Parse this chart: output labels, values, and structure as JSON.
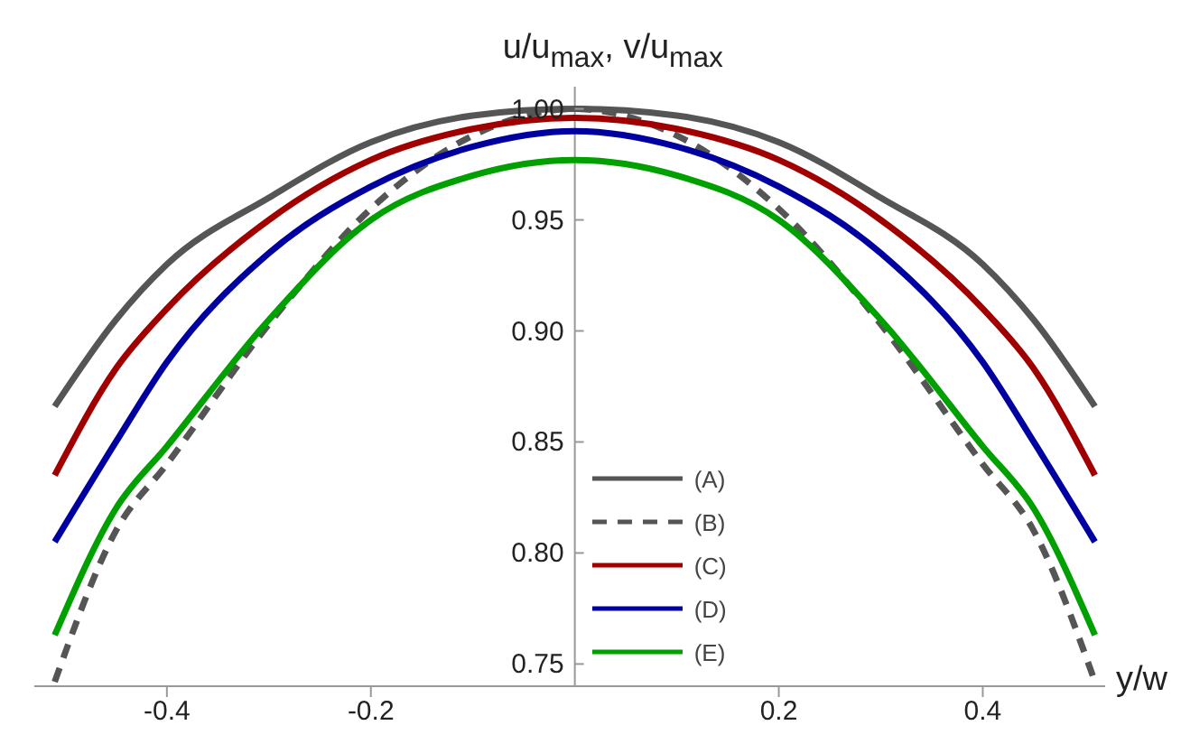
{
  "chart_data": {
    "type": "line",
    "xlabel": "y/w",
    "ylabel": "u/u$_{max}$, v/u$_{max}$",
    "xlim": [
      -0.53,
      0.52
    ],
    "ylim": [
      0.74,
      1.01
    ],
    "xticks": [
      -0.4,
      -0.2,
      0.2,
      0.4
    ],
    "yticks": [
      0.75,
      {
        "value": 0.8,
        "label": "0.80"
      },
      0.85,
      {
        "value": 0.9,
        "label": "0.90"
      },
      0.95,
      {
        "value": 1,
        "label": "1.00"
      }
    ],
    "grid": false,
    "legend": "bottom",
    "marker": "none",
    "x": [
      -0.51,
      -0.45,
      -0.4,
      -0.3,
      -0.2,
      -0.1,
      0,
      0.1,
      0.2,
      0.3,
      0.4,
      0.45,
      0.51
    ],
    "series": [
      {
        "name": "(A)",
        "color": "#555555",
        "values": [
          0.866,
          0.905,
          0.93,
          0.96,
          0.985,
          0.997,
          1.0,
          0.997,
          0.985,
          0.96,
          0.93,
          0.905,
          0.866
        ]
      },
      {
        "name": "(B)",
        "color": "#555555",
        "line_style": "dashed",
        "values": [
          0.742,
          0.81,
          0.84,
          0.903,
          0.955,
          0.988,
          1.0,
          0.988,
          0.955,
          0.903,
          0.84,
          0.81,
          0.742
        ]
      },
      {
        "name": "(C)",
        "color": "#a00000",
        "values": [
          0.835,
          0.883,
          0.91,
          0.95,
          0.977,
          0.991,
          0.996,
          0.991,
          0.977,
          0.95,
          0.91,
          0.883,
          0.835
        ]
      },
      {
        "name": "(D)",
        "color": "#0000a0",
        "values": [
          0.805,
          0.85,
          0.886,
          0.935,
          0.965,
          0.983,
          0.99,
          0.983,
          0.965,
          0.935,
          0.886,
          0.85,
          0.805
        ]
      },
      {
        "name": "(E)",
        "color": "#00a000",
        "values": [
          0.763,
          0.82,
          0.848,
          0.905,
          0.95,
          0.97,
          0.977,
          0.97,
          0.95,
          0.905,
          0.848,
          0.82,
          0.763
        ]
      }
    ]
  }
}
